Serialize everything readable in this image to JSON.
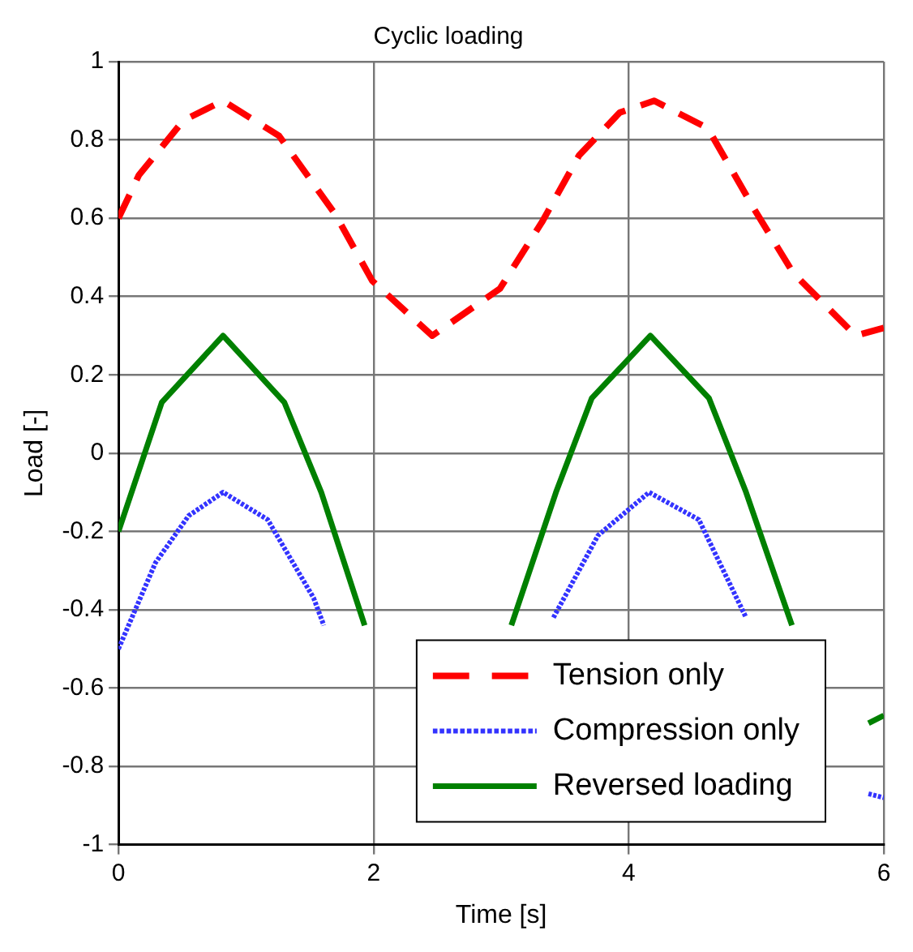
{
  "chart_data": {
    "type": "line",
    "title": "Cyclic loading",
    "xlabel": "Time [s]",
    "ylabel": "Load [-]",
    "xlim": [
      0,
      6
    ],
    "xticks": [
      0,
      2,
      4,
      6
    ],
    "ylim": [
      -1,
      1
    ],
    "yticks": [
      -1,
      -0.8,
      -0.6,
      -0.4,
      -0.2,
      0,
      0.2,
      0.4,
      0.6,
      0.8,
      1
    ],
    "grid": true,
    "legend": "bottom right",
    "marker": "none",
    "series": [
      {
        "name": "Tension only",
        "color": "#ff0000",
        "line_style": "dashed",
        "x": [
          0,
          0.16,
          0.51,
          0.82,
          1.26,
          1.7,
          1.99,
          2.46,
          2.99,
          3.32,
          3.61,
          3.93,
          4.2,
          4.62,
          4.99,
          5.29,
          5.78,
          6
        ],
        "values": [
          0.6,
          0.71,
          0.85,
          0.9,
          0.81,
          0.61,
          0.44,
          0.3,
          0.42,
          0.59,
          0.76,
          0.87,
          0.9,
          0.83,
          0.62,
          0.46,
          0.3,
          0.32
        ]
      },
      {
        "name": "Compression only",
        "color": "#3333ff",
        "line_style": "dotted",
        "x": [
          0,
          0.29,
          0.55,
          0.82,
          1.17,
          1.53,
          1.61,
          2.5,
          3.41,
          3.76,
          4.16,
          4.55,
          4.92,
          5.4,
          5.88,
          6
        ],
        "values": [
          -0.5,
          -0.28,
          -0.16,
          -0.1,
          -0.17,
          -0.37,
          -0.44,
          null,
          -0.42,
          -0.21,
          -0.1,
          -0.17,
          -0.42,
          null,
          -0.87,
          -0.88
        ]
      },
      {
        "name": "Reversed loading",
        "color": "#008000",
        "line_style": "solid",
        "x": [
          0,
          0.34,
          0.82,
          1.3,
          1.59,
          1.93,
          2.5,
          3.08,
          3.43,
          3.71,
          4.17,
          4.63,
          4.92,
          5.28,
          5.6,
          5.88,
          6
        ],
        "values": [
          -0.2,
          0.13,
          0.3,
          0.13,
          -0.1,
          -0.44,
          null,
          -0.44,
          -0.1,
          0.14,
          0.3,
          0.14,
          -0.1,
          -0.44,
          null,
          -0.69,
          -0.67
        ]
      }
    ]
  }
}
